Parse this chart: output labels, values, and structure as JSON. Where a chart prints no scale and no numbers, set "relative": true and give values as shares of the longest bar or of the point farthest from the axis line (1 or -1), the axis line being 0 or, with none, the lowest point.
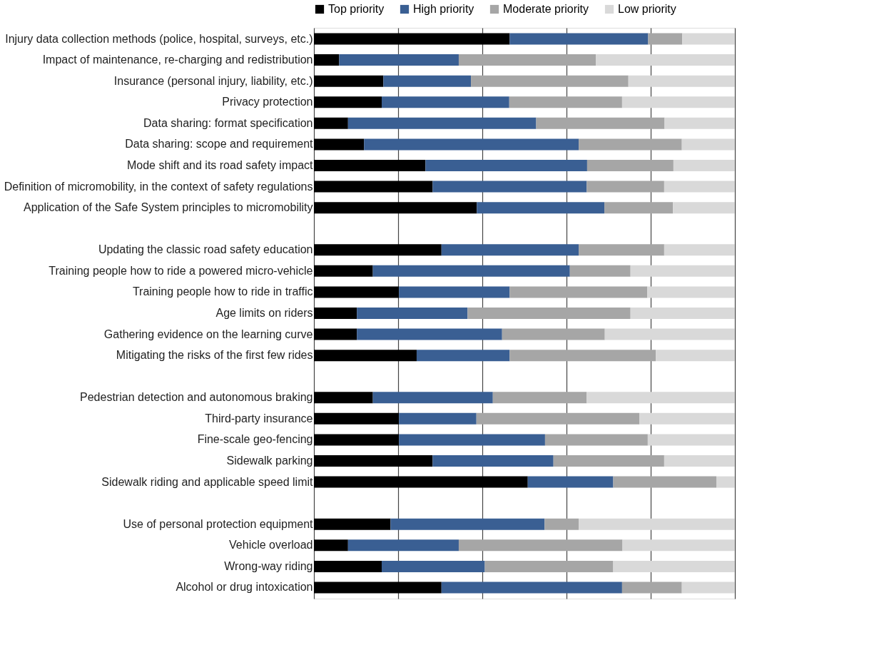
{
  "chart_data": {
    "type": "bar",
    "orientation": "horizontal",
    "stacked": true,
    "relative": true,
    "grid": "x",
    "legend": "top",
    "categories": [
      "Injury data collection methods (police, hospital, surveys, etc.)",
      "Impact of maintenance, re-charging and redistribution",
      "Insurance (personal injury, liability, etc.)",
      "Privacy protection",
      "Data sharing: format specification",
      "Data sharing: scope and requirement",
      "Mode shift and its road safety impact",
      "Definition of micromobility, in the context of safety regulations",
      "Application of the Safe System principles to micromobility",
      null,
      "Updating the classic road safety education",
      "Training people how to ride a powered micro-vehicle",
      "Training people how to ride in traffic",
      "Age limits on riders",
      "Gathering evidence on the learning curve",
      "Mitigating the risks of the first few rides",
      null,
      "Pedestrian detection and autonomous braking",
      "Third-party insurance",
      "Fine-scale geo-fencing",
      "Sidewalk parking",
      "Sidewalk riding and applicable speed limit",
      null,
      "Use of personal protection equipment",
      "Vehicle overload",
      "Wrong-way riding",
      "Alcohol or drug intoxication"
    ],
    "series": [
      {
        "name": "Top priority",
        "color": "#000000",
        "values": [
          0.465,
          0.06,
          0.165,
          0.161,
          0.081,
          0.119,
          0.265,
          0.282,
          0.387,
          null,
          0.303,
          0.14,
          0.202,
          0.102,
          0.102,
          0.244,
          null,
          0.14,
          0.202,
          0.202,
          0.282,
          0.508,
          null,
          0.182,
          0.081,
          0.161,
          0.303
        ]
      },
      {
        "name": "High priority",
        "color": "#3a5f93",
        "values": [
          0.329,
          0.284,
          0.208,
          0.303,
          0.447,
          0.51,
          0.384,
          0.366,
          0.303,
          null,
          0.326,
          0.468,
          0.263,
          0.263,
          0.345,
          0.221,
          null,
          0.285,
          0.184,
          0.347,
          0.287,
          0.203,
          null,
          0.366,
          0.263,
          0.245,
          0.429
        ]
      },
      {
        "name": "Moderate priority",
        "color": "#a6a6a6",
        "values": [
          0.081,
          0.326,
          0.374,
          0.268,
          0.305,
          0.245,
          0.205,
          0.184,
          0.163,
          null,
          0.203,
          0.144,
          0.327,
          0.387,
          0.244,
          0.347,
          null,
          0.223,
          0.387,
          0.244,
          0.263,
          0.245,
          null,
          0.081,
          0.389,
          0.305,
          0.142
        ]
      },
      {
        "name": "Low priority",
        "color": "#d9d9d9",
        "values": [
          0.125,
          0.33,
          0.253,
          0.268,
          0.167,
          0.126,
          0.146,
          0.168,
          0.147,
          null,
          0.168,
          0.248,
          0.208,
          0.248,
          0.309,
          0.188,
          null,
          0.352,
          0.227,
          0.207,
          0.168,
          0.044,
          null,
          0.371,
          0.267,
          0.289,
          0.126
        ]
      }
    ]
  }
}
